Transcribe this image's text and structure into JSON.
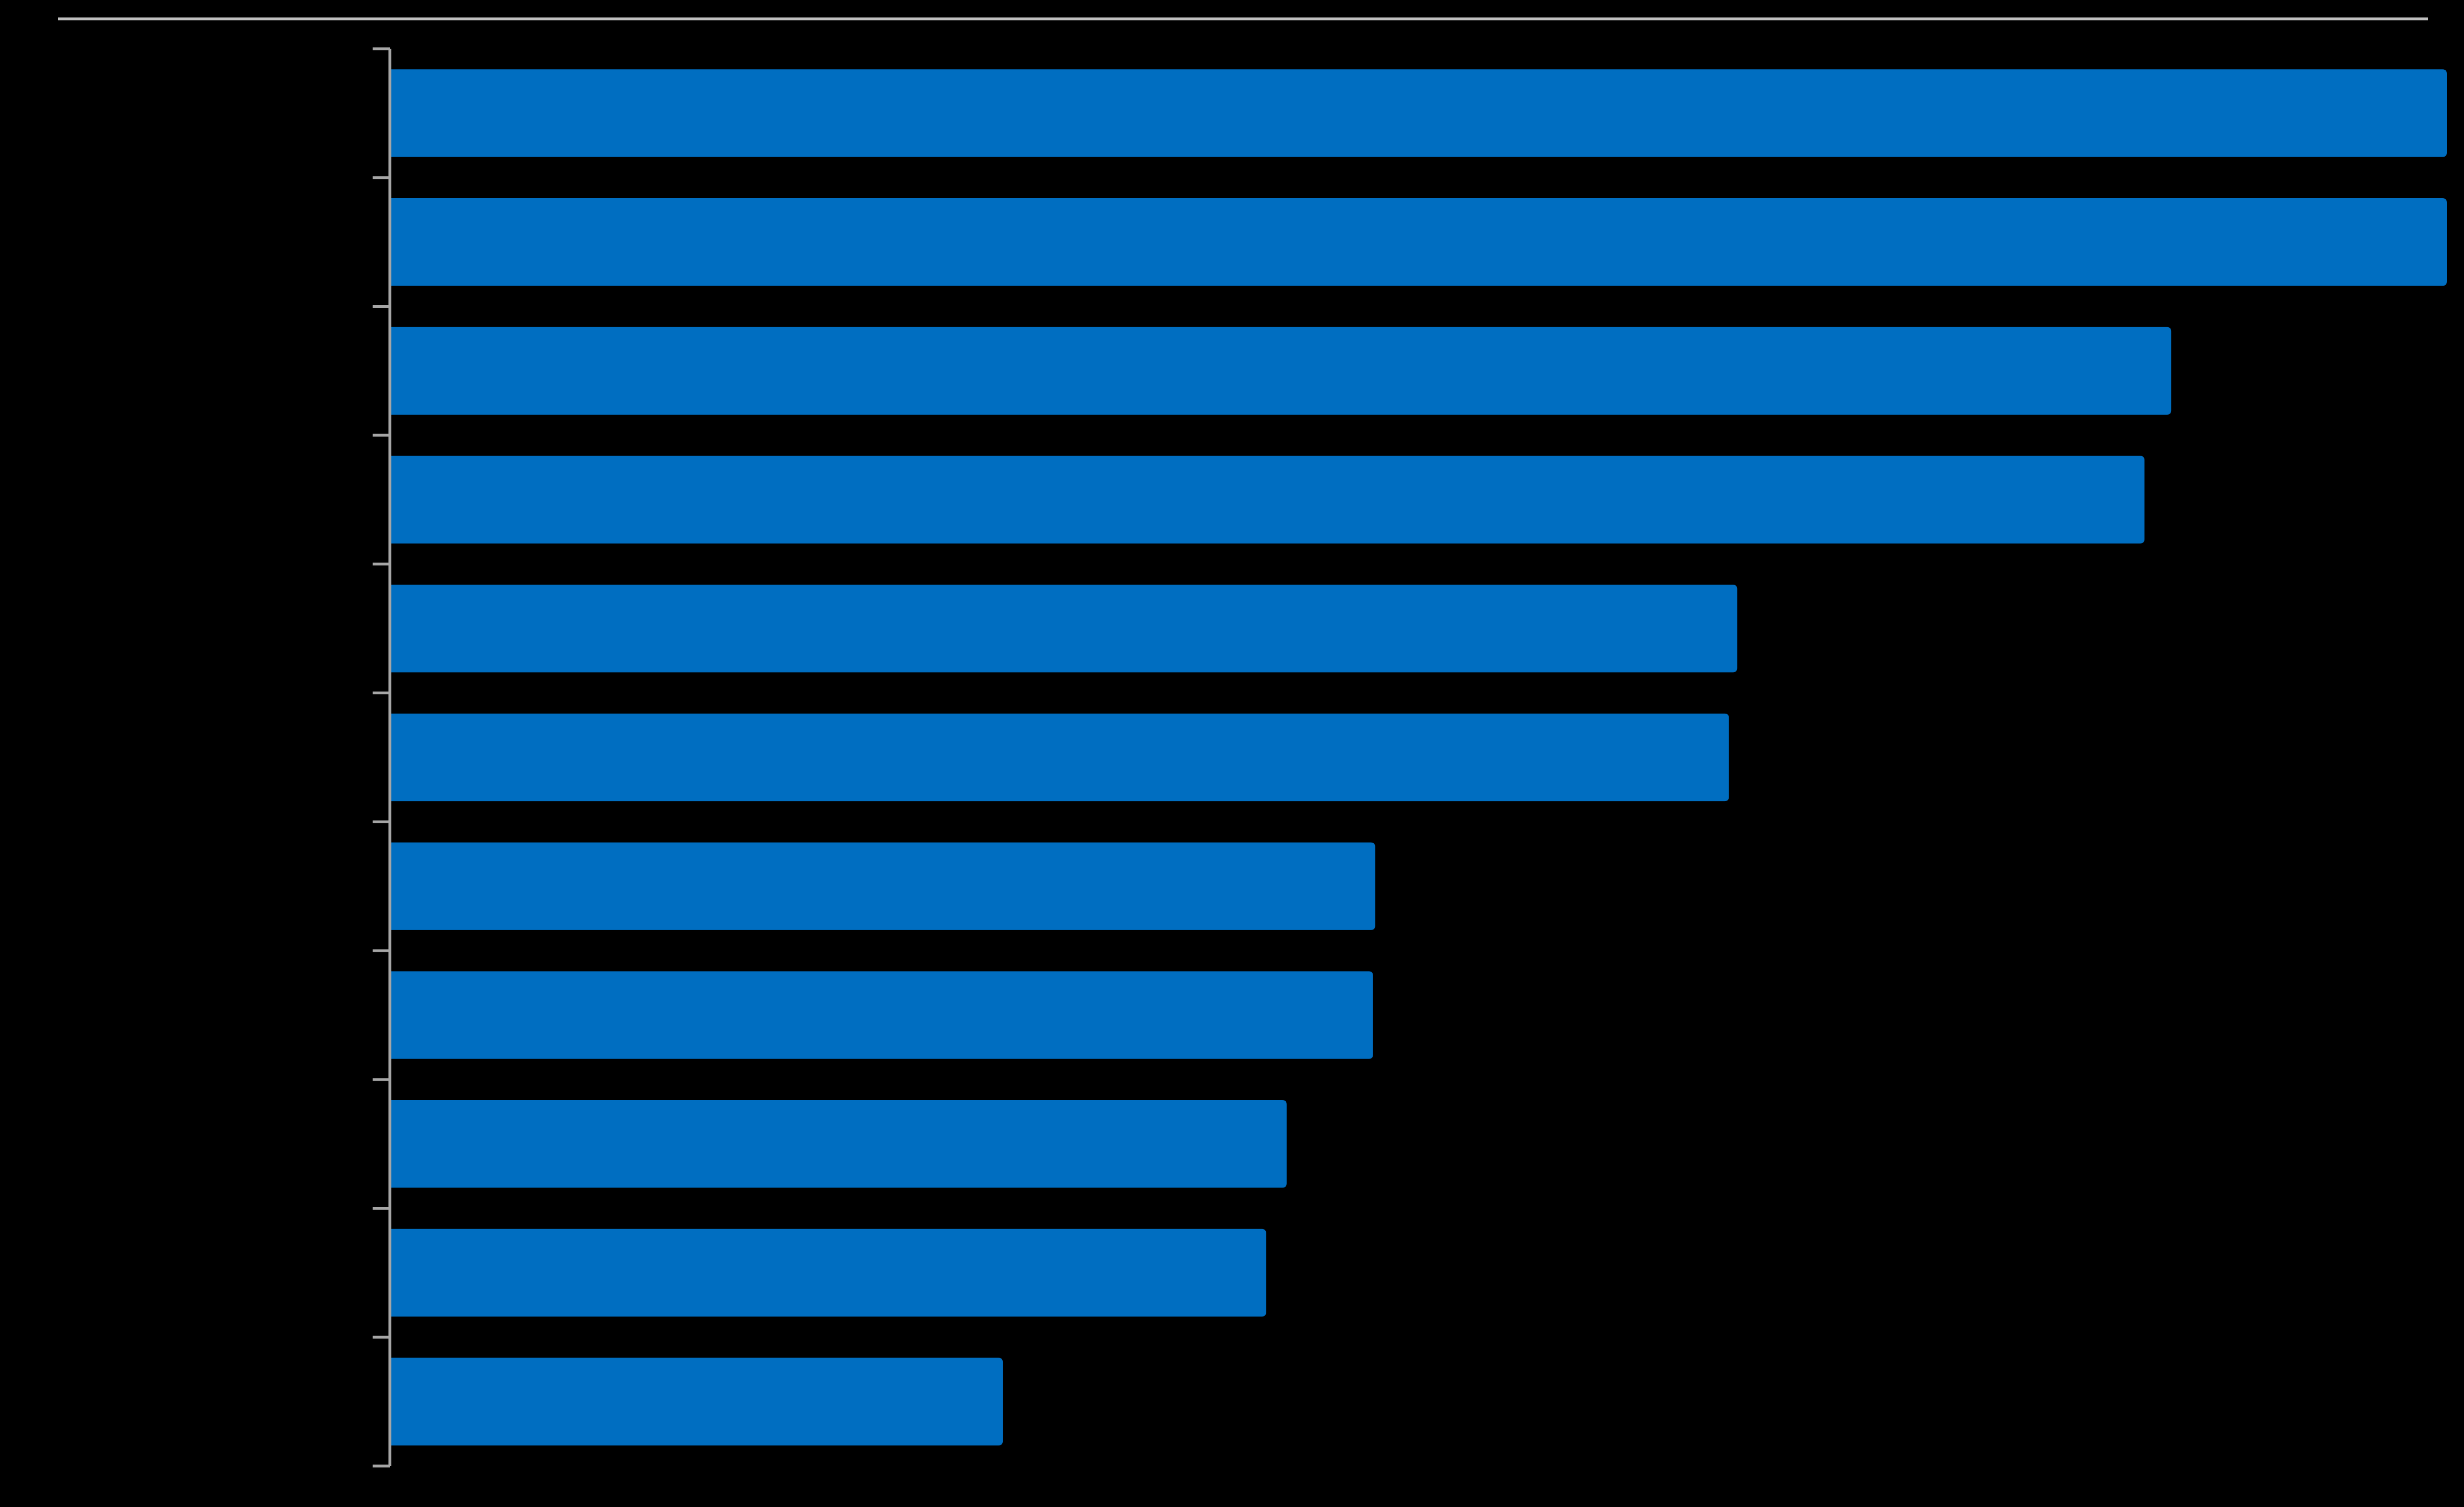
{
  "chart_data": {
    "type": "bar",
    "orientation": "horizontal",
    "categories": [
      null,
      null,
      null,
      null,
      null,
      null,
      null,
      null,
      null,
      null,
      null
    ],
    "values": [
      100,
      100,
      86.6,
      85.3,
      65.5,
      65.1,
      47.9,
      47.8,
      43.6,
      42.6,
      29.8
    ],
    "color": "#006ec1",
    "xlim": [
      0,
      100
    ]
  }
}
